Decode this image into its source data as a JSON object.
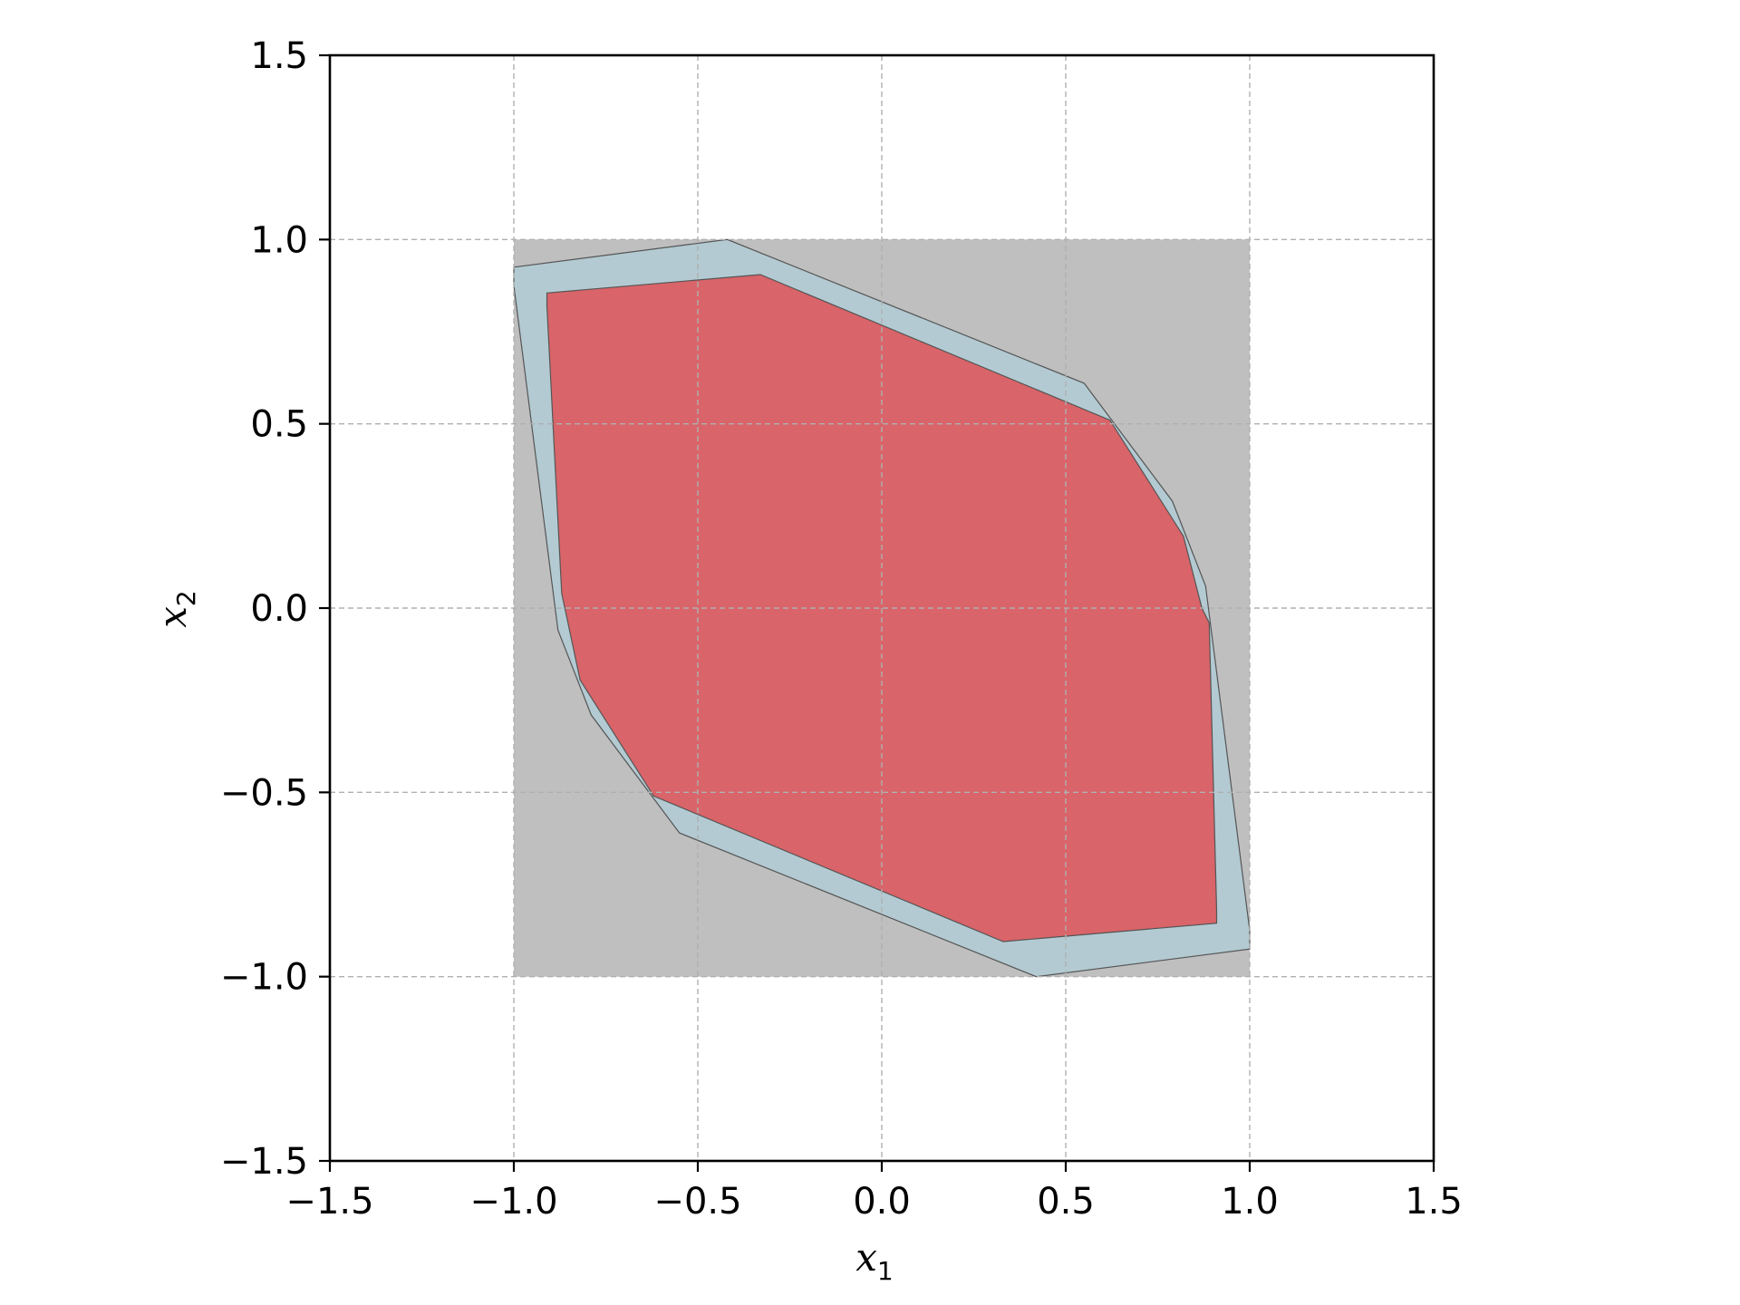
{
  "chart_data": {
    "type": "area",
    "xlabel": "x",
    "xlabel_sub": "1",
    "ylabel": "x",
    "ylabel_sub": "2",
    "xlim": [
      -1.5,
      1.5
    ],
    "ylim": [
      -1.5,
      1.5
    ],
    "xticks": [
      -1.5,
      -1.0,
      -0.5,
      0.0,
      0.5,
      1.0,
      1.5
    ],
    "yticks": [
      -1.5,
      -1.0,
      -0.5,
      0.0,
      0.5,
      1.0,
      1.5
    ],
    "xtick_labels": [
      "−1.5",
      "−1.0",
      "−0.5",
      "0.0",
      "0.5",
      "1.0",
      "1.5"
    ],
    "ytick_labels": [
      "−1.5",
      "−1.0",
      "−0.5",
      "0.0",
      "0.5",
      "1.0",
      "1.5"
    ],
    "grid": true,
    "colors": {
      "box": "#bfbfbf",
      "outer": "#b3cad2",
      "inner": "#d96469",
      "edge": "#555555",
      "grid": "#b0b0b0"
    },
    "regions": [
      {
        "kind": "box",
        "points": [
          [
            -1.0,
            -1.0
          ],
          [
            1.0,
            -1.0
          ],
          [
            1.0,
            1.0
          ],
          [
            -1.0,
            1.0
          ]
        ]
      },
      {
        "kind": "outer",
        "points": [
          [
            -1.0,
            0.925
          ],
          [
            -0.42,
            1.0
          ],
          [
            0.55,
            0.61
          ],
          [
            0.79,
            0.29
          ],
          [
            0.88,
            0.06
          ],
          [
            1.0,
            -0.875
          ],
          [
            1.0,
            -0.925
          ],
          [
            0.42,
            -1.0
          ],
          [
            -0.55,
            -0.61
          ],
          [
            -0.79,
            -0.29
          ],
          [
            -0.88,
            -0.06
          ],
          [
            -1.0,
            0.875
          ]
        ]
      },
      {
        "kind": "inner",
        "points": [
          [
            -0.91,
            0.855
          ],
          [
            -0.33,
            0.905
          ],
          [
            0.62,
            0.51
          ],
          [
            0.82,
            0.195
          ],
          [
            0.87,
            0.0
          ],
          [
            0.89,
            -0.04
          ],
          [
            0.91,
            -0.82
          ],
          [
            0.91,
            -0.855
          ],
          [
            0.33,
            -0.905
          ],
          [
            -0.62,
            -0.51
          ],
          [
            -0.82,
            -0.195
          ],
          [
            -0.87,
            0.04
          ],
          [
            -0.91,
            0.82
          ]
        ]
      }
    ]
  }
}
